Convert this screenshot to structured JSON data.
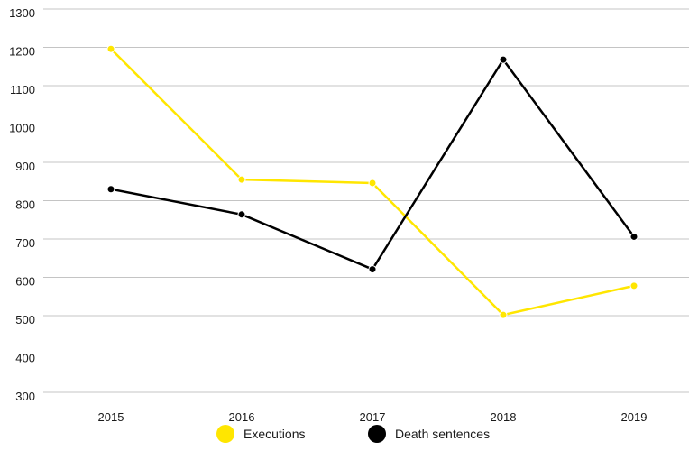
{
  "chart_data": {
    "type": "line",
    "title": "",
    "xlabel": "",
    "ylabel": "",
    "x": [
      "2015",
      "2016",
      "2017",
      "2018",
      "2019"
    ],
    "ylim": [
      300,
      1300
    ],
    "yticks": [
      300,
      400,
      500,
      600,
      700,
      800,
      900,
      1000,
      1100,
      1200,
      1300
    ],
    "grid": true,
    "legend_position": "bottom-center",
    "series": [
      {
        "name": "Executions",
        "color": "#ffe600",
        "values": [
          1196,
          855,
          846,
          502,
          578
        ]
      },
      {
        "name": "Death sentences",
        "color": "#000000",
        "values": [
          830,
          764,
          621,
          1168,
          706
        ]
      }
    ]
  }
}
